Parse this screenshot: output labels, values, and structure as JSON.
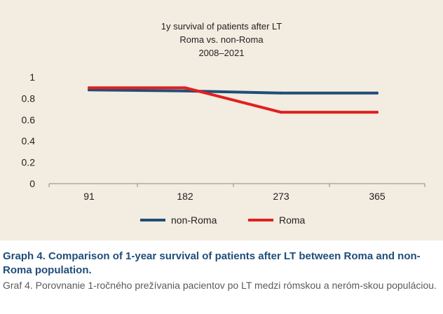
{
  "chart_data": {
    "type": "line",
    "title_lines": [
      "1y survival of patients after LT",
      "Roma vs. non-Roma",
      "2008–2021"
    ],
    "xlabel": "",
    "ylabel": "",
    "categories": [
      "91",
      "182",
      "273",
      "365"
    ],
    "y_ticks": [
      "0",
      "0.2",
      "0.4",
      "0.6",
      "0.8",
      "1"
    ],
    "ylim": [
      0,
      1
    ],
    "grid": false,
    "legend_position": "bottom",
    "series": [
      {
        "name": "non-Roma",
        "color": "#1f4e79",
        "values": [
          0.88,
          0.87,
          0.85,
          0.85
        ]
      },
      {
        "name": "Roma",
        "color": "#e02020",
        "values": [
          0.9,
          0.9,
          0.67,
          0.67
        ]
      }
    ]
  },
  "caption": {
    "english": "Graph 4. Comparison of 1-year survival of patients after LT between Roma and non-Roma population.",
    "slovak": "Graf 4. Porovnanie 1-ročného prežívania pacientov po LT medzi rómskou a neróm-skou populáciou."
  }
}
